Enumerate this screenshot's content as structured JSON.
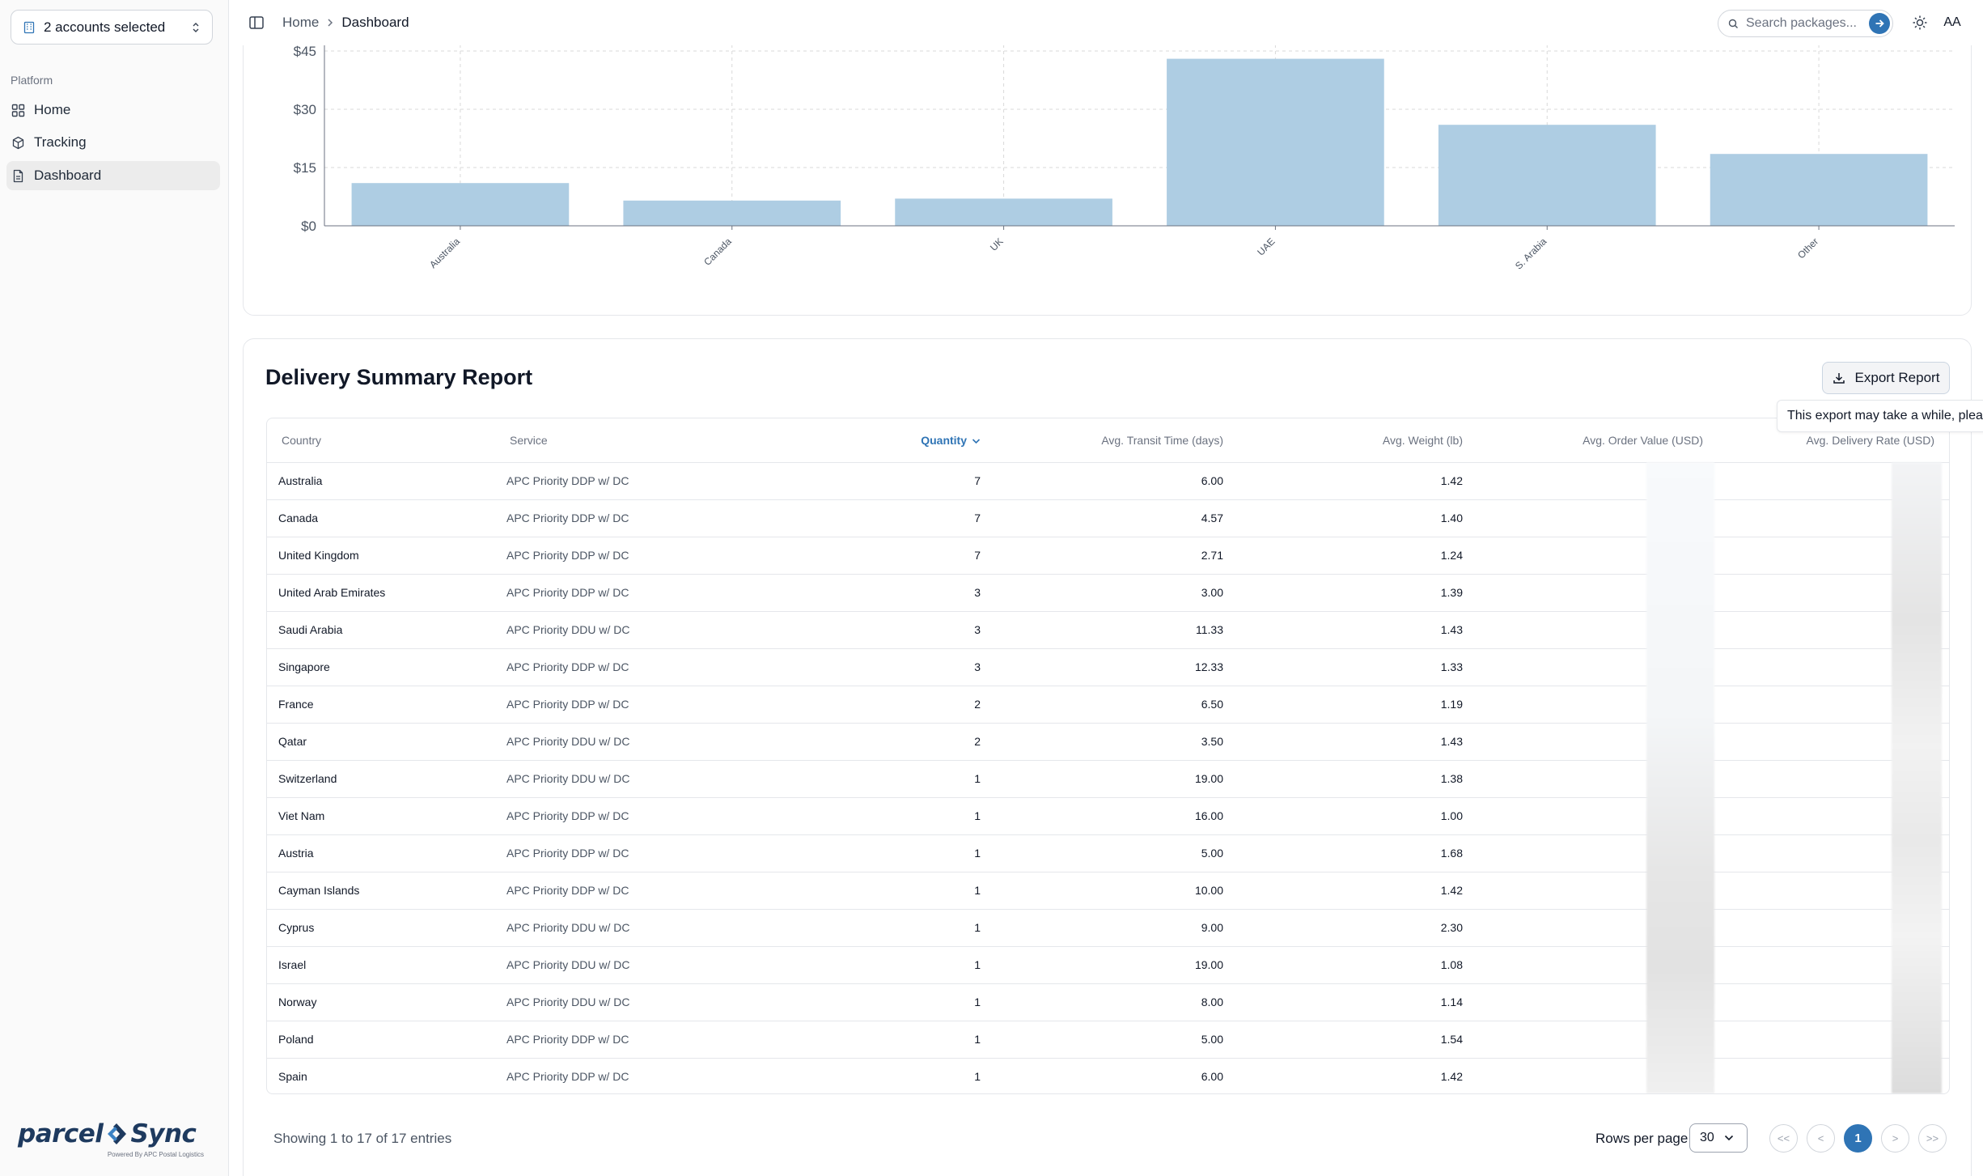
{
  "sidebar": {
    "account_selector": "2 accounts selected",
    "group_label": "Platform",
    "items": [
      {
        "label": "Home",
        "icon": "grid-icon"
      },
      {
        "label": "Tracking",
        "icon": "package-icon"
      },
      {
        "label": "Dashboard",
        "icon": "document-icon"
      }
    ],
    "active_item": "Dashboard",
    "logo": {
      "brand_left": "parcel",
      "brand_right": "Sync",
      "tagline": "Powered By APC Postal Logistics"
    }
  },
  "header": {
    "breadcrumb": [
      "Home",
      "Dashboard"
    ],
    "search_placeholder": "Search packages...",
    "avatar": "AA",
    "accent_color": "#2f74b5"
  },
  "chart_data": {
    "type": "bar",
    "categories": [
      "Australia",
      "Canada",
      "UK",
      "UAE",
      "S. Arabia",
      "Other"
    ],
    "values": [
      11,
      6.5,
      7,
      43,
      26,
      18.5
    ],
    "y_ticks": [
      "$0",
      "$15",
      "$30",
      "$45"
    ],
    "ylim": [
      0,
      45
    ],
    "bar_color": "#aecde3",
    "grid": true,
    "title": "",
    "xlabel": "",
    "ylabel": ""
  },
  "report": {
    "title": "Delivery Summary Report",
    "export_label": "Export Report",
    "tooltip": "This export may take a while, please be patient.",
    "columns": [
      "Country",
      "Service",
      "Quantity",
      "Avg. Transit Time (days)",
      "Avg. Weight (lb)",
      "Avg. Order Value (USD)",
      "Avg. Delivery Rate (USD)"
    ],
    "sorted_column": "Quantity",
    "rows": [
      [
        "Australia",
        "APC Priority DDP w/ DC",
        "7",
        "6.00",
        "1.42"
      ],
      [
        "Canada",
        "APC Priority DDP w/ DC",
        "7",
        "4.57",
        "1.40"
      ],
      [
        "United Kingdom",
        "APC Priority DDP w/ DC",
        "7",
        "2.71",
        "1.24"
      ],
      [
        "United Arab Emirates",
        "APC Priority DDP w/ DC",
        "3",
        "3.00",
        "1.39"
      ],
      [
        "Saudi Arabia",
        "APC Priority DDU w/ DC",
        "3",
        "11.33",
        "1.43"
      ],
      [
        "Singapore",
        "APC Priority DDP w/ DC",
        "3",
        "12.33",
        "1.33"
      ],
      [
        "France",
        "APC Priority DDP w/ DC",
        "2",
        "6.50",
        "1.19"
      ],
      [
        "Qatar",
        "APC Priority DDU w/ DC",
        "2",
        "3.50",
        "1.43"
      ],
      [
        "Switzerland",
        "APC Priority DDU w/ DC",
        "1",
        "19.00",
        "1.38"
      ],
      [
        "Viet Nam",
        "APC Priority DDP w/ DC",
        "1",
        "16.00",
        "1.00"
      ],
      [
        "Austria",
        "APC Priority DDP w/ DC",
        "1",
        "5.00",
        "1.68"
      ],
      [
        "Cayman Islands",
        "APC Priority DDP w/ DC",
        "1",
        "10.00",
        "1.42"
      ],
      [
        "Cyprus",
        "APC Priority DDU w/ DC",
        "1",
        "9.00",
        "2.30"
      ],
      [
        "Israel",
        "APC Priority DDU w/ DC",
        "1",
        "19.00",
        "1.08"
      ],
      [
        "Norway",
        "APC Priority DDU w/ DC",
        "1",
        "8.00",
        "1.14"
      ],
      [
        "Poland",
        "APC Priority DDP w/ DC",
        "1",
        "5.00",
        "1.54"
      ],
      [
        "Spain",
        "APC Priority DDP w/ DC",
        "1",
        "6.00",
        "1.42"
      ]
    ],
    "footer": {
      "entries_text": "Showing 1 to 17 of 17 entries",
      "rows_per_page_label": "Rows per page",
      "rows_per_page_value": "30",
      "pager": [
        "<<",
        "<",
        "1",
        ">",
        ">>"
      ],
      "current_page": "1"
    }
  }
}
